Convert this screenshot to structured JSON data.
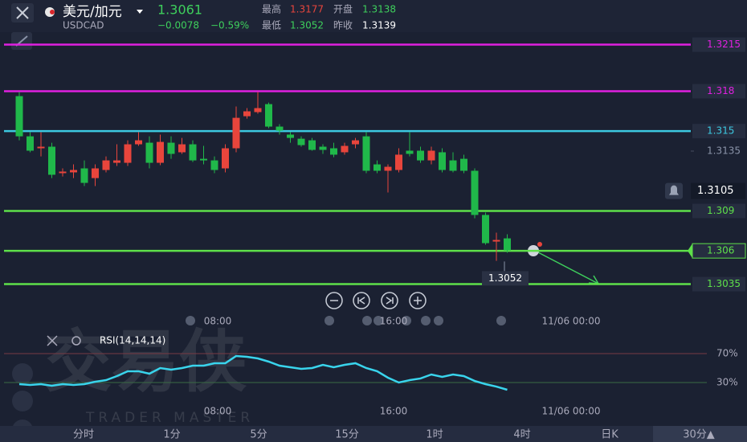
{
  "header": {
    "pair": "美元/加元",
    "symbol": "USDCAD",
    "price": 1.3061,
    "change": "−0.0078",
    "change_pct": "−0.59%",
    "high_label": "最高",
    "high": 1.3177,
    "open_label": "开盘",
    "open": 1.3138,
    "low_label": "最低",
    "low": 1.3052,
    "prev_close_label": "昨收",
    "prev_close": 1.3139
  },
  "chart": {
    "type": "candlestick",
    "ylim": [
      1.3016,
      1.3225
    ],
    "up_color": "#e8453c",
    "down_color": "#20b84a",
    "candles": [
      [
        1.31763,
        1.31794,
        1.31431,
        1.31461
      ],
      [
        1.31461,
        1.31492,
        1.31341,
        1.31353
      ],
      [
        1.31371,
        1.31492,
        1.3131,
        1.31383
      ],
      [
        1.31383,
        1.31413,
        1.31147,
        1.31172
      ],
      [
        1.31184,
        1.3122,
        1.31159,
        1.31196
      ],
      [
        1.3119,
        1.3125,
        1.31147,
        1.31208
      ],
      [
        1.3122,
        1.3128,
        1.31087,
        1.31111
      ],
      [
        1.31147,
        1.3125,
        1.31087,
        1.3122
      ],
      [
        1.31208,
        1.3131,
        1.3119,
        1.3128
      ],
      [
        1.31262,
        1.31401,
        1.31238,
        1.3128
      ],
      [
        1.31262,
        1.31431,
        1.31238,
        1.31401
      ],
      [
        1.31401,
        1.31492,
        1.31389,
        1.31431
      ],
      [
        1.31413,
        1.31461,
        1.3122,
        1.31262
      ],
      [
        1.31262,
        1.31474,
        1.31244,
        1.31419
      ],
      [
        1.31413,
        1.31461,
        1.31292,
        1.31329
      ],
      [
        1.31341,
        1.31449,
        1.31329,
        1.31401
      ],
      [
        1.31401,
        1.31431,
        1.31268,
        1.3128
      ],
      [
        1.31292,
        1.31389,
        1.3125,
        1.3128
      ],
      [
        1.3128,
        1.3131,
        1.31184,
        1.31208
      ],
      [
        1.3122,
        1.31401,
        1.3119,
        1.31371
      ],
      [
        1.31371,
        1.31685,
        1.31341,
        1.316
      ],
      [
        1.31612,
        1.31673,
        1.31594,
        1.31649
      ],
      [
        1.31643,
        1.31794,
        1.31631,
        1.31673
      ],
      [
        1.31703,
        1.31715,
        1.31522,
        1.31534
      ],
      [
        1.31534,
        1.31552,
        1.31474,
        1.31504
      ],
      [
        1.31474,
        1.31492,
        1.31413,
        1.31449
      ],
      [
        1.31443,
        1.31461,
        1.31383,
        1.31395
      ],
      [
        1.31431,
        1.31449,
        1.31353,
        1.31359
      ],
      [
        1.31383,
        1.31401,
        1.31329,
        1.31359
      ],
      [
        1.31371,
        1.31413,
        1.31304,
        1.31323
      ],
      [
        1.31341,
        1.31413,
        1.31323,
        1.31389
      ],
      [
        1.31401,
        1.31449,
        1.31371,
        1.31431
      ],
      [
        1.31461,
        1.31492,
        1.31184,
        1.31202
      ],
      [
        1.3125,
        1.3128,
        1.31184,
        1.31202
      ],
      [
        1.31202,
        1.3125,
        1.31039,
        1.31232
      ],
      [
        1.31208,
        1.31371,
        1.3119,
        1.31323
      ],
      [
        1.31353,
        1.31492,
        1.3131,
        1.31329
      ],
      [
        1.31353,
        1.31383,
        1.31262,
        1.3128
      ],
      [
        1.3128,
        1.31383,
        1.3125,
        1.31353
      ],
      [
        1.31341,
        1.31371,
        1.3119,
        1.31208
      ],
      [
        1.3128,
        1.31341,
        1.3119,
        1.31202
      ],
      [
        1.31292,
        1.31323,
        1.31184,
        1.31202
      ],
      [
        1.31202,
        1.3122,
        1.30845,
        1.3087
      ],
      [
        1.3087,
        1.30888,
        1.30646,
        1.30658
      ],
      [
        1.3067,
        1.30737,
        1.30525,
        1.30682
      ],
      [
        1.30694,
        1.30725,
        1.30586,
        1.30604
      ]
    ],
    "price_lines": [
      {
        "value": 1.3215,
        "color": "#e020e0"
      },
      {
        "value": 1.318,
        "color": "#e020e0"
      },
      {
        "value": 1.315,
        "color": "#3cc8e0"
      },
      {
        "value": 1.309,
        "color": "#5ee04a"
      },
      {
        "value": 1.306,
        "color": "#5ee04a"
      },
      {
        "value": 1.3035,
        "color": "#5ee04a"
      }
    ],
    "yticks": [
      1.3135
    ],
    "alert_price": 1.3105,
    "low_marker": 1.3052,
    "time_labels": [
      "08:00",
      "16:00",
      "11/06 00:00"
    ]
  },
  "rsi": {
    "label": "RSI(14,14,14)",
    "ylim": [
      0,
      100
    ],
    "yticks": [
      {
        "value": 70,
        "label": "70%"
      },
      {
        "value": 30,
        "label": "30%"
      }
    ],
    "color": "#39d4ec",
    "values": [
      27.8,
      26.7,
      27.8,
      25.6,
      27.8,
      26.7,
      27.8,
      31.1,
      33.3,
      38.9,
      45.6,
      45.6,
      42.2,
      50,
      47.8,
      50,
      53.3,
      53.3,
      56.7,
      56.7,
      66.7,
      65.6,
      63.3,
      58.9,
      53.3,
      51.1,
      48.9,
      50,
      54.4,
      51.1,
      54.4,
      56.7,
      50,
      45.6,
      36.7,
      30,
      33.3,
      35.6,
      41.1,
      37.8,
      41.1,
      38.9,
      32.2,
      27.8,
      24.4,
      20
    ],
    "time_labels": [
      "08:00",
      "16:00",
      "11/06 00:00"
    ]
  },
  "watermark": {
    "brand": "交易侠",
    "sub": "TRADER MASTER"
  },
  "tabs": [
    "分时",
    "1分",
    "5分",
    "15分",
    "1时",
    "4时",
    "日K",
    "30分▲"
  ]
}
